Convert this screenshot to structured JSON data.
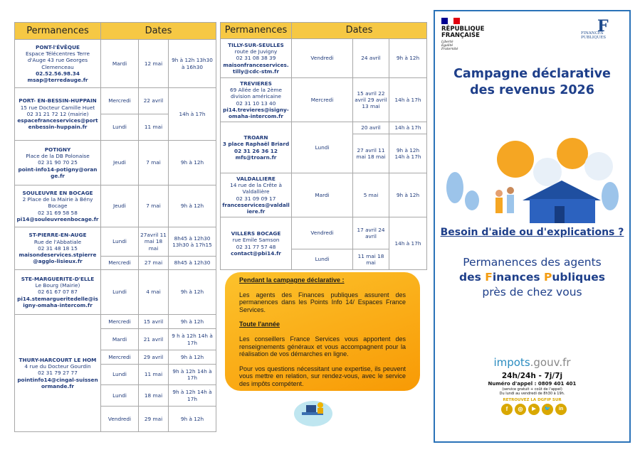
{
  "headers": {
    "permanences": "Permanences",
    "dates": "Dates"
  },
  "left": [
    {
      "name": "PONT-l'ÉVÊQUE",
      "address": "Espace Télécentres Terre d'Auge 43 rue Georges Clemenceau",
      "phone": "02.52.56.98.34",
      "email": "msap@terredauge.fr",
      "sessions": [
        {
          "day": "Mardi",
          "date": "12 mai",
          "hours": "9h à 12h 13h30 à 16h30"
        }
      ]
    },
    {
      "name": "PORT- EN-BESSIN-HUPPAIN",
      "address": "15 rue Docteur Camille Huet",
      "phone": "02 31 21 72 12 (mairie)",
      "email": "espacefranceservices@portenbessin-huppain.fr",
      "sessions": [
        {
          "day": "Mercredi",
          "date": "22 avril",
          "hours": "14h à 17h"
        },
        {
          "day": "Lundi",
          "date": "11 mai"
        }
      ]
    },
    {
      "name": "POTIGNY",
      "address": "Place de la DB Polonaise",
      "phone": "02 31 90 70 25",
      "email": "point-info14-potigny@orange.fr",
      "sessions": [
        {
          "day": "Jeudi",
          "date": "7 mai",
          "hours": "9h à 12h"
        }
      ]
    },
    {
      "name": "SOULEUVRE EN BOCAGE",
      "address": "2 Place de la Mairie à Bény Bocage",
      "phone": "02 31 69 58 58",
      "email": "pi14@souleuvreenbocage.fr",
      "sessions": [
        {
          "day": "Jeudi",
          "date": "7 mai",
          "hours": "9h à 12h"
        }
      ]
    },
    {
      "name": "ST-PIERRE-EN-AUGE",
      "address": "Rue de l'Abbatiale",
      "phone": "02 31 48 18 15",
      "email": "maisondeservices.stpierre@agglo-lisieux.fr",
      "sessions": [
        {
          "day": "Lundi",
          "date": "27avril 11 mai 18 mai",
          "hours": "8h45 à 12h30 13h30 à 17h15"
        },
        {
          "day": "Mercredi",
          "date": "27 mai",
          "hours": "8h45 à 12h30"
        }
      ]
    },
    {
      "name": "STE-MARGUERITE-D'ELLE",
      "address": "Le Bourg (Mairie)",
      "phone": "02 61 67 07 87",
      "email": "pi14.stemargueritedelle@isigny-omaha-intercom.fr",
      "sessions": [
        {
          "day": "Lundi",
          "date": "4 mai",
          "hours": "9h à 12h"
        }
      ]
    },
    {
      "name": "THURY-HARCOURT LE HOM",
      "address": "4 rue du Docteur Gourdin",
      "phone": "02 31 79 27 77",
      "email": "pointinfo14@cingal-suissenormande.fr",
      "sessions": [
        {
          "day": "Mercredi",
          "date": "15 avril",
          "hours": "9h à 12h"
        },
        {
          "day": "Mardi",
          "date": "21 avril",
          "hours": "9 h à 12h 14h à 17h"
        },
        {
          "day": "Mercredi",
          "date": "29 avril",
          "hours": "9h à 12h"
        },
        {
          "day": "Lundi",
          "date": "11 mai",
          "hours": "9h à 12h 14h à 17h"
        },
        {
          "day": "Lundi",
          "date": "18 mai",
          "hours": "9h à 12h 14h à 17h"
        },
        {
          "day": "Vendredi",
          "date": "29 mai",
          "hours": "9h à 12h"
        }
      ]
    }
  ],
  "right": [
    {
      "name": "TILLY-SUR-SEULLES",
      "address": "route de Juvigny",
      "phone": "02 31 08 38 39",
      "email": "maisonfranceservices.tilly@cdc-stm.fr",
      "sessions": [
        {
          "day": "Vendredi",
          "date": "24 avril",
          "hours": "9h à 12h"
        }
      ]
    },
    {
      "name": "TREVIERES",
      "address": "69 Allée de la 2ème division américaine",
      "phone": "02 31 10 13 40",
      "email": "pi14.trevieres@isigny-omaha-intercom.fr",
      "sessions": [
        {
          "day": "Mercredi",
          "date": "15 avril 22 avril 29 avril 13 mai",
          "hours": "14h à 17h"
        }
      ]
    },
    {
      "name": "TROARN",
      "address": "3 place Raphaël Briard",
      "phone": "02 31 26 36 12",
      "email": "mfs@troarn.fr",
      "sessions": [
        {
          "day": "Lundi",
          "date": "20 avril",
          "hours": "14h à 17h"
        },
        {
          "date": "27 avril 11 mai 18 mai",
          "hours": "9h à 12h 14h à 17h"
        }
      ]
    },
    {
      "name": "VALDALLIERE",
      "address": "14 rue de la Crête à Valdallière",
      "phone": "02 31 09 09 17",
      "email": "franceservices@valdalliere.fr",
      "sessions": [
        {
          "day": "Mardi",
          "date": "5 mai",
          "hours": "9h à 12h"
        }
      ]
    },
    {
      "name": "VILLERS BOCAGE",
      "address": "rue Emile Samson",
      "phone": "02 31 77 57 48",
      "email": "contact@pbi14.fr",
      "sessions": [
        {
          "day": "Vendredi",
          "date": "17 avril 24 avril",
          "hours": "14h à 17h"
        },
        {
          "day": "Lundi",
          "date": "11 mai 18 mai"
        }
      ]
    }
  ],
  "info": {
    "h1": "Pendant la campagne déclarative :",
    "p1": "Les agents des Finances publiques assurent des permanences dans les Points Info 14/ Espaces France Services.",
    "h2": "Toute l'année",
    "p2": "Les conseillers France Services vous apportent des renseignements généraux et vous accompagnent pour la réalisation de vos démarches en ligne.",
    "p3": "Pour vos questions nécessitant une expertise, ils peuvent vous mettre en relation, sur rendez-vous, avec le service des impôts compétent."
  },
  "cover": {
    "rf1": "RÉPUBLIQUE",
    "rf2": "FRANÇAISE",
    "motto": "Liberté Égalité Fraternité",
    "fp": "FINANCES PUBLIQUES",
    "title1": "Campagne déclarative",
    "title2": "des revenus 2026",
    "help": "Besoin d'aide ou d'explications ?",
    "perm1": "Permanences des agents",
    "perm2a": "des ",
    "perm2F": "F",
    "perm2b": "inances ",
    "perm2P": "P",
    "perm2c": "ubliques",
    "perm3": "près de chez vous",
    "site_a": "impots",
    "site_b": ".gouv.fr",
    "hours": "24h/24h - 7j/7j",
    "phone": "Numéro d'appel : 0809 401 401",
    "phone_note": "(service gratuit + coût de l'appel)",
    "phone_hours": "Du lundi au vendredi de 8h30 à 19h.",
    "social_title": "RETROUVEZ LA DGFIP SUR",
    "social": [
      "f",
      "◎",
      "▶",
      "🐦",
      "in"
    ]
  },
  "colors": {
    "header": "#f6c844",
    "text": "#1f3a7a",
    "accent": "#f39c12",
    "border": "#2a72b8"
  }
}
